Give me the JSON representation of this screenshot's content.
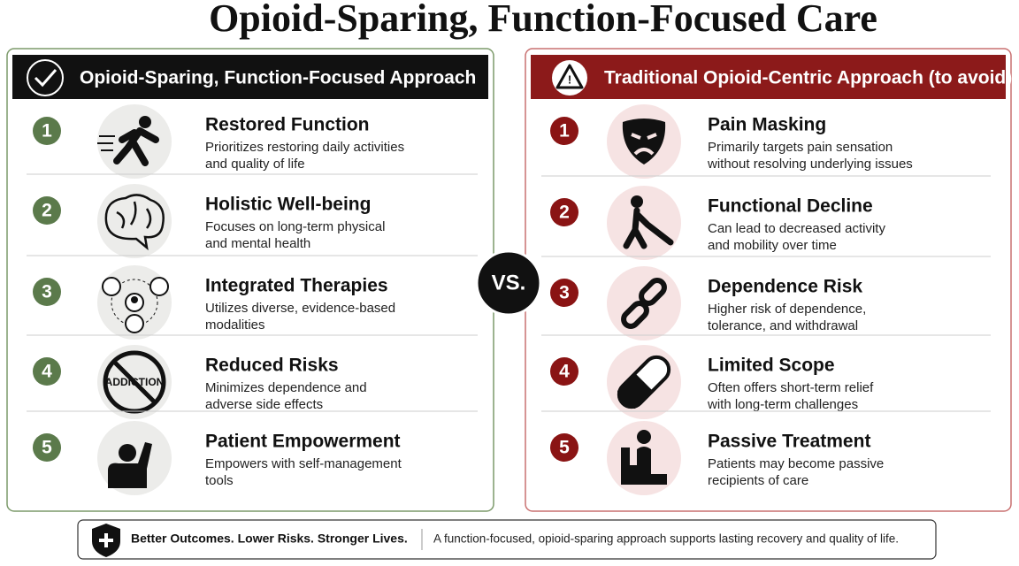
{
  "title": "Opioid-Sparing, Function-Focused Care",
  "left": {
    "header": "Opioid-Sparing, Function-Focused Approach",
    "items": [
      {
        "number": 1,
        "title": "Restored Function",
        "lines": [
          "Prioritizes restoring daily activities",
          "and quality of life"
        ]
      },
      {
        "number": 2,
        "title": "Holistic Well-being",
        "lines": [
          "Focuses on long-term physical",
          "and mental health"
        ]
      },
      {
        "number": 3,
        "title": "Integrated Therapies",
        "lines": [
          "Utilizes diverse, evidence-based",
          "modalities"
        ]
      },
      {
        "number": 4,
        "title": "Reduced Risks",
        "lines": [
          "Minimizes dependence and",
          "adverse side effects"
        ],
        "icon_text": "ADDICTION"
      },
      {
        "number": 5,
        "title": "Patient Empowerment",
        "lines": [
          "Empowers  with self-management",
          "tools"
        ]
      }
    ]
  },
  "vs": "VS.",
  "right": {
    "header": "Traditional Opioid-Centric Approach (to avoid)",
    "items": [
      {
        "number": 1,
        "title": "Pain Masking",
        "lines": [
          "Primarily targets pain sensation",
          "without resolving underlying issues"
        ]
      },
      {
        "number": 2,
        "title": "Functional Decline",
        "lines": [
          "Can lead to decreased activity",
          "and mobility over time"
        ]
      },
      {
        "number": 3,
        "title": "Dependence Risk",
        "lines": [
          "Higher risk of dependence,",
          "tolerance, and withdrawal"
        ]
      },
      {
        "number": 4,
        "title": "Limited Scope",
        "lines": [
          "Often offers short-term relief",
          "with long-term challenges"
        ]
      },
      {
        "number": 5,
        "title": "Passive Treatment",
        "lines": [
          "Patients may become passive",
          "recipients of care"
        ]
      }
    ]
  },
  "footer": {
    "tagline": "Better Outcomes. Lower Risks. Stronger Lives.",
    "text": "A function-focused, opioid-sparing approach supports lasting recovery and quality of life."
  }
}
